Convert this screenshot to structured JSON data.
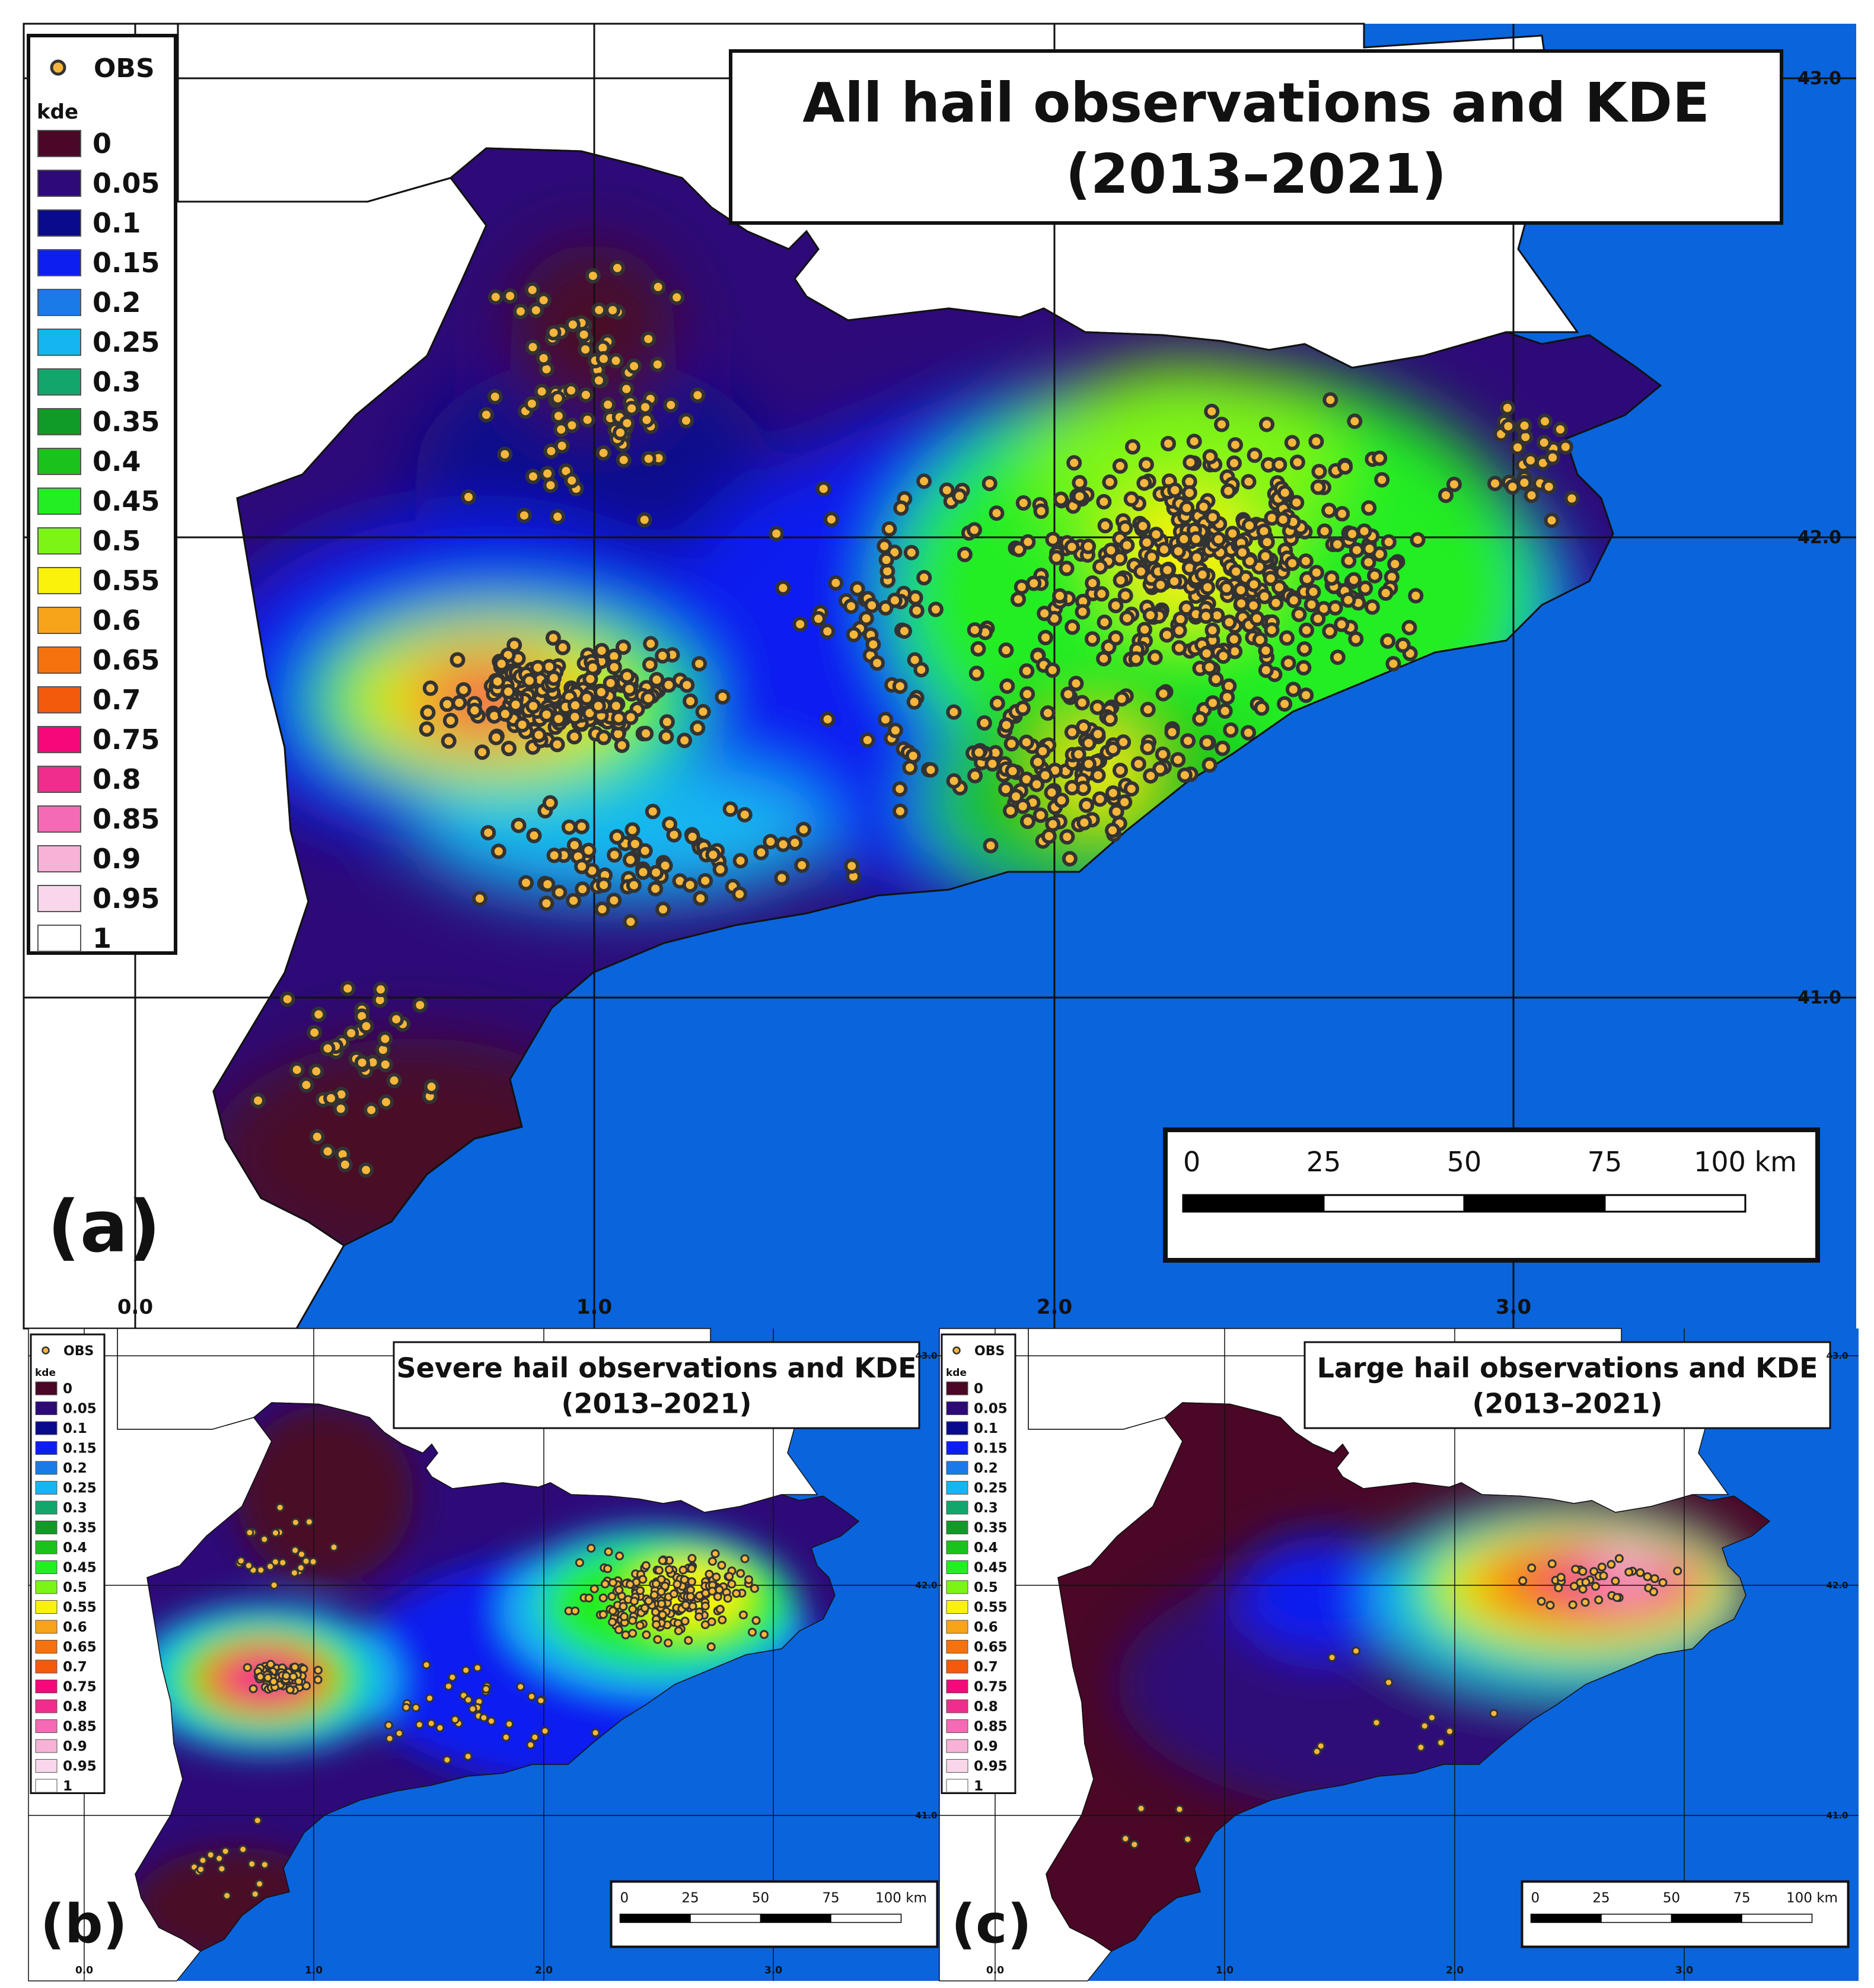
{
  "legend": {
    "obs_label": "OBS",
    "kde_title": "kde",
    "entries": [
      {
        "label": "0",
        "color": "#4a0726"
      },
      {
        "label": "0.05",
        "color": "#2d0a78"
      },
      {
        "label": "0.1",
        "color": "#0a0a8c"
      },
      {
        "label": "0.15",
        "color": "#0d1ff0"
      },
      {
        "label": "0.2",
        "color": "#1a7ae8"
      },
      {
        "label": "0.25",
        "color": "#14b6f2"
      },
      {
        "label": "0.3",
        "color": "#13a66c"
      },
      {
        "label": "0.35",
        "color": "#109a28"
      },
      {
        "label": "0.4",
        "color": "#1cc21c"
      },
      {
        "label": "0.45",
        "color": "#22ee22"
      },
      {
        "label": "0.5",
        "color": "#7cf516"
      },
      {
        "label": "0.55",
        "color": "#fbf20c"
      },
      {
        "label": "0.6",
        "color": "#f8a41a"
      },
      {
        "label": "0.65",
        "color": "#f6720f"
      },
      {
        "label": "0.7",
        "color": "#f45a0c"
      },
      {
        "label": "0.75",
        "color": "#f6087a"
      },
      {
        "label": "0.8",
        "color": "#f02d8c"
      },
      {
        "label": "0.85",
        "color": "#f46ab4"
      },
      {
        "label": "0.9",
        "color": "#f7b2d8"
      },
      {
        "label": "0.95",
        "color": "#fad6ea"
      },
      {
        "label": "1",
        "color": "#ffffff"
      }
    ]
  },
  "colors": {
    "sea": "#0a64dc",
    "land_outside": "#ffffff",
    "obs_fill": "#f6b63b",
    "obs_stroke": "#333333"
  },
  "panels": {
    "a": {
      "letter": "(a)",
      "title_line1": "All hail observations and KDE",
      "title_line2": "(2013–2021)",
      "lat_labels": [
        "43.0",
        "42.0",
        "41.0"
      ],
      "lon_labels": [
        "0.0",
        "1.0",
        "2.0",
        "3.0"
      ],
      "scale_labels": [
        "0",
        "25",
        "50",
        "75",
        "100 km"
      ]
    },
    "b": {
      "letter": "(b)",
      "title_line1": "Severe hail observations and KDE",
      "title_line2": "(2013–2021)",
      "lat_labels": [
        "43.0",
        "42.0",
        "41.0"
      ],
      "lon_labels": [
        "0.0",
        "1.0",
        "2.0",
        "3.0"
      ],
      "scale_labels": [
        "0",
        "25",
        "50",
        "75",
        "100 km"
      ]
    },
    "c": {
      "letter": "(c)",
      "title_line1": "Large hail observations and KDE",
      "title_line2": "(2013–2021)",
      "lat_labels": [
        "43.0",
        "42.0",
        "41.0"
      ],
      "lon_labels": [
        "0.0",
        "1.0",
        "2.0",
        "3.0"
      ],
      "scale_labels": [
        "0",
        "25",
        "50",
        "75",
        "100 km"
      ]
    }
  }
}
